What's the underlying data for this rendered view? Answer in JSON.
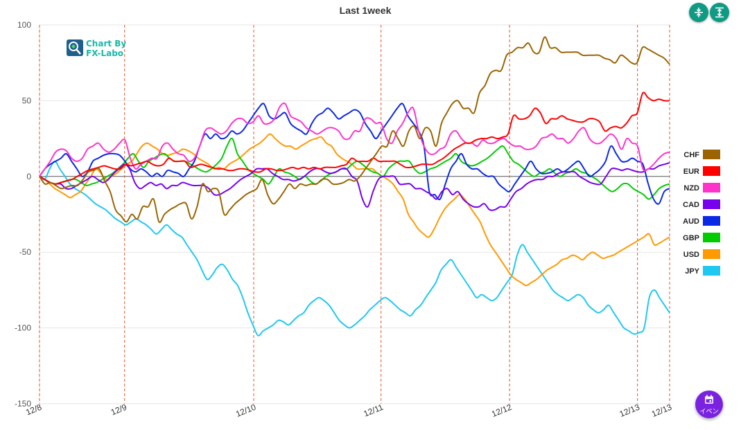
{
  "chart_data": {
    "type": "line",
    "title": "Last 1week",
    "ylim": [
      -150,
      100
    ],
    "yticks": [
      100,
      50,
      0,
      -50,
      -100,
      -150
    ],
    "x_tick_labels": [
      "12/8",
      "12/9",
      "12/10",
      "12/11",
      "12/12",
      "12/13",
      "12/13"
    ],
    "grid": "horizontal",
    "legend_position": "right",
    "series": [
      {
        "name": "CHF",
        "color": "#9b6400",
        "values": [
          0,
          -5,
          -4,
          -6,
          -8,
          -7,
          -6,
          -6,
          -2,
          3,
          4,
          5,
          -3,
          -10,
          -22,
          -26,
          -30,
          -25,
          -28,
          -20,
          -20,
          -15,
          -30,
          -25,
          -22,
          -20,
          -18,
          -18,
          -28,
          -20,
          -5,
          -10,
          -8,
          -10,
          -25,
          -22,
          -18,
          -15,
          -12,
          -10,
          -8,
          -2,
          -12,
          -18,
          -15,
          -10,
          -5,
          -8,
          -5,
          -6,
          -5,
          -5,
          -2,
          -2,
          -5,
          -5,
          -4,
          -2,
          -3,
          0,
          5,
          10,
          15,
          20,
          20,
          30,
          25,
          20,
          30,
          33,
          25,
          32,
          30,
          20,
          35,
          42,
          48,
          50,
          45,
          45,
          42,
          55,
          60,
          68,
          70,
          70,
          80,
          82,
          85,
          85,
          88,
          82,
          82,
          92,
          85,
          85,
          82,
          82,
          82,
          82,
          80,
          80,
          80,
          80,
          78,
          77,
          75,
          80,
          78,
          75,
          75,
          85,
          84,
          82,
          80,
          78,
          74
        ]
      },
      {
        "name": "EUR",
        "color": "#ff0000",
        "values": [
          0,
          -2,
          -4,
          -5,
          -4,
          -3,
          -2,
          0,
          2,
          4,
          5,
          6,
          7,
          6,
          5,
          5,
          8,
          7,
          8,
          9,
          10,
          8,
          7,
          8,
          12,
          10,
          10,
          10,
          6,
          7,
          8,
          7,
          6,
          5,
          5,
          4,
          4,
          5,
          5,
          4,
          3,
          3,
          5,
          5,
          4,
          4,
          5,
          6,
          5,
          6,
          5,
          6,
          5,
          6,
          6,
          6,
          7,
          8,
          12,
          10,
          10,
          10,
          12,
          10,
          10,
          10,
          10,
          8,
          6,
          6,
          7,
          8,
          8,
          8,
          10,
          12,
          15,
          18,
          20,
          22,
          22,
          24,
          25,
          25,
          26,
          25,
          26,
          28,
          40,
          38,
          38,
          40,
          45,
          42,
          35,
          38,
          38,
          40,
          38,
          37,
          36,
          36,
          38,
          38,
          36,
          30,
          32,
          33,
          32,
          35,
          40,
          42,
          55,
          52,
          50,
          51,
          50,
          50
        ]
      },
      {
        "name": "NZD",
        "color": "#ff33cc",
        "values": [
          0,
          5,
          10,
          16,
          18,
          17,
          12,
          10,
          12,
          18,
          20,
          22,
          18,
          16,
          18,
          22,
          24,
          12,
          5,
          8,
          10,
          12,
          12,
          20,
          22,
          18,
          15,
          14,
          10,
          12,
          20,
          30,
          32,
          30,
          28,
          30,
          35,
          38,
          38,
          35,
          36,
          40,
          35,
          35,
          38,
          46,
          48,
          40,
          38,
          36,
          32,
          30,
          28,
          30,
          32,
          32,
          30,
          25,
          25,
          30,
          30,
          38,
          38,
          35,
          35,
          25,
          22,
          30,
          35,
          42,
          45,
          30,
          20,
          15,
          15,
          18,
          20,
          28,
          30,
          25,
          22,
          22,
          20,
          24,
          22,
          22,
          24,
          25,
          22,
          20,
          20,
          18,
          18,
          20,
          25,
          26,
          28,
          25,
          25,
          22,
          25,
          30,
          32,
          25,
          22,
          22,
          25,
          28,
          25,
          18,
          25,
          22,
          20,
          5,
          5,
          8,
          12,
          15,
          16
        ]
      },
      {
        "name": "CAD",
        "color": "#7700ee",
        "values": [
          0,
          -2,
          -4,
          -5,
          -5,
          -8,
          -8,
          -6,
          -4,
          -2,
          0,
          -2,
          -4,
          -2,
          2,
          5,
          8,
          5,
          -4,
          -8,
          -6,
          -4,
          -6,
          -5,
          -8,
          -6,
          -6,
          -4,
          -5,
          -6,
          -6,
          -6,
          -8,
          -12,
          -12,
          -10,
          -8,
          -5,
          -2,
          0,
          2,
          5,
          5,
          5,
          2,
          0,
          -2,
          -2,
          -3,
          -2,
          0,
          3,
          5,
          5,
          3,
          2,
          3,
          5,
          5,
          0,
          -3,
          -15,
          -20,
          -10,
          -2,
          0,
          0,
          0,
          -5,
          -5,
          -5,
          -8,
          -8,
          -10,
          -12,
          -15,
          -10,
          -8,
          -12,
          -10,
          -15,
          -18,
          -20,
          -20,
          -18,
          -22,
          -22,
          -20,
          -20,
          -15,
          -10,
          -8,
          -5,
          -3,
          -2,
          -2,
          0,
          0,
          2,
          3,
          3,
          3,
          0,
          -2,
          -4,
          -5,
          -5,
          0,
          5,
          5,
          4,
          5,
          4,
          3,
          3,
          5,
          5,
          7,
          8,
          9
        ]
      },
      {
        "name": "AUD",
        "color": "#0a28e6",
        "values": [
          0,
          5,
          8,
          10,
          12,
          15,
          10,
          5,
          0,
          3,
          10,
          12,
          14,
          15,
          15,
          14,
          10,
          5,
          3,
          5,
          3,
          0,
          2,
          0,
          4,
          3,
          2,
          0,
          5,
          10,
          20,
          28,
          25,
          28,
          25,
          26,
          30,
          28,
          30,
          35,
          40,
          45,
          48,
          40,
          38,
          40,
          42,
          35,
          32,
          30,
          28,
          35,
          40,
          42,
          45,
          42,
          38,
          40,
          42,
          44,
          42,
          35,
          30,
          25,
          30,
          35,
          40,
          45,
          48,
          40,
          35,
          30,
          20,
          -10,
          -12,
          -15,
          -5,
          5,
          10,
          15,
          8,
          5,
          5,
          2,
          0,
          0,
          -5,
          -8,
          -10,
          -5,
          0,
          5,
          10,
          5,
          2,
          2,
          3,
          5,
          3,
          5,
          8,
          10,
          5,
          0,
          2,
          5,
          10,
          20,
          15,
          10,
          10,
          12,
          10,
          8,
          -5,
          -15,
          -18,
          -10,
          -8
        ]
      },
      {
        "name": "GBP",
        "color": "#00cc00",
        "values": [
          0,
          -2,
          -4,
          -5,
          -4,
          -3,
          -2,
          -2,
          -4,
          -6,
          -5,
          -4,
          -2,
          0,
          2,
          5,
          8,
          12,
          15,
          10,
          6,
          10,
          12,
          14,
          15,
          12,
          10,
          10,
          10,
          8,
          6,
          4,
          3,
          5,
          8,
          12,
          20,
          25,
          15,
          10,
          5,
          2,
          0,
          -2,
          -5,
          0,
          5,
          3,
          2,
          0,
          -2,
          0,
          -3,
          -5,
          -3,
          0,
          2,
          3,
          5,
          5,
          8,
          10,
          8,
          5,
          3,
          2,
          0,
          5,
          8,
          10,
          10,
          10,
          5,
          2,
          3,
          5,
          6,
          8,
          10,
          12,
          15,
          10,
          8,
          7,
          8,
          10,
          12,
          15,
          18,
          20,
          15,
          10,
          8,
          5,
          2,
          0,
          2,
          3,
          5,
          2,
          0,
          2,
          3,
          5,
          3,
          2,
          0,
          -2,
          -5,
          -8,
          -10,
          -8,
          -5,
          -5,
          -8,
          -10,
          -12,
          -15,
          -12,
          -8,
          -6,
          -5
        ]
      },
      {
        "name": "USD",
        "color": "#ff9900",
        "values": [
          0,
          -2,
          -5,
          -8,
          -10,
          -12,
          -14,
          -12,
          -10,
          -5,
          0,
          5,
          2,
          -2,
          0,
          2,
          5,
          8,
          10,
          15,
          20,
          22,
          20,
          18,
          15,
          14,
          15,
          16,
          18,
          17,
          15,
          12,
          10,
          8,
          5,
          6,
          5,
          8,
          10,
          12,
          15,
          18,
          20,
          22,
          25,
          28,
          25,
          22,
          20,
          20,
          18,
          20,
          22,
          24,
          25,
          26,
          22,
          20,
          15,
          12,
          10,
          8,
          5,
          5,
          5,
          5,
          2,
          0,
          -2,
          -5,
          -10,
          -15,
          -25,
          -30,
          -35,
          -38,
          -40,
          -35,
          -28,
          -22,
          -18,
          -15,
          -12,
          -15,
          -20,
          -25,
          -30,
          -38,
          -45,
          -50,
          -55,
          -60,
          -65,
          -68,
          -70,
          -72,
          -70,
          -68,
          -65,
          -62,
          -60,
          -58,
          -55,
          -54,
          -52,
          -53,
          -55,
          -52,
          -50,
          -52,
          -54,
          -53,
          -52,
          -50,
          -48,
          -46,
          -44,
          -42,
          -40,
          -38,
          -45,
          -44,
          -42,
          -40
        ]
      },
      {
        "name": "JPY",
        "color": "#1ec8f0",
        "values": [
          0,
          -2,
          5,
          10,
          5,
          0,
          -5,
          -8,
          -10,
          -12,
          -15,
          -18,
          -20,
          -22,
          -25,
          -28,
          -30,
          -32,
          -30,
          -28,
          -30,
          -32,
          -35,
          -38,
          -35,
          -32,
          -35,
          -38,
          -40,
          -45,
          -50,
          -55,
          -62,
          -68,
          -65,
          -60,
          -58,
          -62,
          -68,
          -72,
          -80,
          -90,
          -98,
          -105,
          -102,
          -100,
          -98,
          -95,
          -96,
          -98,
          -95,
          -92,
          -90,
          -85,
          -82,
          -80,
          -82,
          -85,
          -90,
          -95,
          -98,
          -100,
          -98,
          -95,
          -92,
          -88,
          -85,
          -82,
          -80,
          -82,
          -85,
          -88,
          -90,
          -92,
          -88,
          -85,
          -80,
          -75,
          -70,
          -62,
          -58,
          -55,
          -60,
          -65,
          -70,
          -75,
          -80,
          -78,
          -80,
          -82,
          -80,
          -75,
          -70,
          -65,
          -52,
          -45,
          -50,
          -55,
          -60,
          -65,
          -70,
          -75,
          -78,
          -80,
          -82,
          -80,
          -78,
          -80,
          -85,
          -88,
          -90,
          -88,
          -85,
          -90,
          -95,
          -100,
          -102,
          -104,
          -103,
          -100,
          -80,
          -75,
          -80,
          -85,
          -90
        ]
      }
    ]
  },
  "logo": {
    "line1": "Chart By",
    "line2": "FX-Labo"
  },
  "controls": {
    "fit_icon": "vertical-compress-icon",
    "expand_icon": "vertical-expand-icon",
    "event_icon": "calendar-icon",
    "event_label": "イベン"
  },
  "colors": {
    "accent": "#0f9a83",
    "event": "#7a22e0",
    "day_divider": "#e0552a"
  }
}
